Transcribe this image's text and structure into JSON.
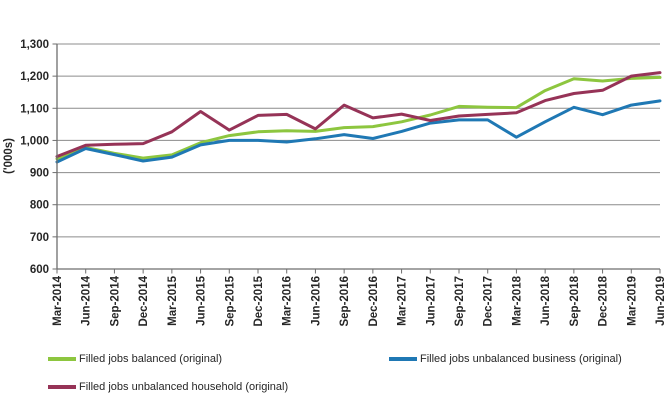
{
  "chart_data": {
    "type": "line",
    "title": "",
    "xlabel": "",
    "ylabel": "('000s)",
    "ylim": [
      600,
      1300
    ],
    "ytick_step": 100,
    "grid": true,
    "legend_position": "bottom",
    "categories": [
      "Mar-2014",
      "Jun-2014",
      "Sep-2014",
      "Dec-2014",
      "Mar-2015",
      "Jun-2015",
      "Sep-2015",
      "Dec-2015",
      "Mar-2016",
      "Jun-2016",
      "Sep-2016",
      "Dec-2016",
      "Mar-2017",
      "Jun-2017",
      "Sep-2017",
      "Dec-2017",
      "Mar-2018",
      "Jun-2018",
      "Sep-2018",
      "Dec-2018",
      "Mar-2019",
      "Jun-2019"
    ],
    "series": [
      {
        "name": "Filled jobs balanced (original)",
        "color": "#8DC63F",
        "values": [
          943,
          978,
          960,
          945,
          955,
          993,
          1015,
          1027,
          1030,
          1028,
          1040,
          1043,
          1058,
          1079,
          1106,
          1103,
          1102,
          1155,
          1192,
          1185,
          1193,
          1196
        ]
      },
      {
        "name": "Filled jobs unbalanced business (original)",
        "color": "#1F78B4",
        "values": [
          933,
          975,
          956,
          936,
          948,
          986,
          1000,
          1000,
          995,
          1005,
          1018,
          1006,
          1028,
          1054,
          1064,
          1064,
          1010,
          1058,
          1103,
          1080,
          1110,
          1123
        ]
      },
      {
        "name": "Filled jobs unbalanced household (original)",
        "color": "#963357",
        "values": [
          950,
          985,
          988,
          990,
          1027,
          1090,
          1032,
          1078,
          1081,
          1036,
          1110,
          1070,
          1082,
          1062,
          1076,
          1081,
          1086,
          1124,
          1146,
          1156,
          1200,
          1211
        ]
      }
    ]
  },
  "colors": {
    "gridline": "#8C8C8C",
    "axis": "#6E6E6E",
    "tick": "#6E6E6E",
    "text": "#262626",
    "background": "#FFFFFF"
  }
}
